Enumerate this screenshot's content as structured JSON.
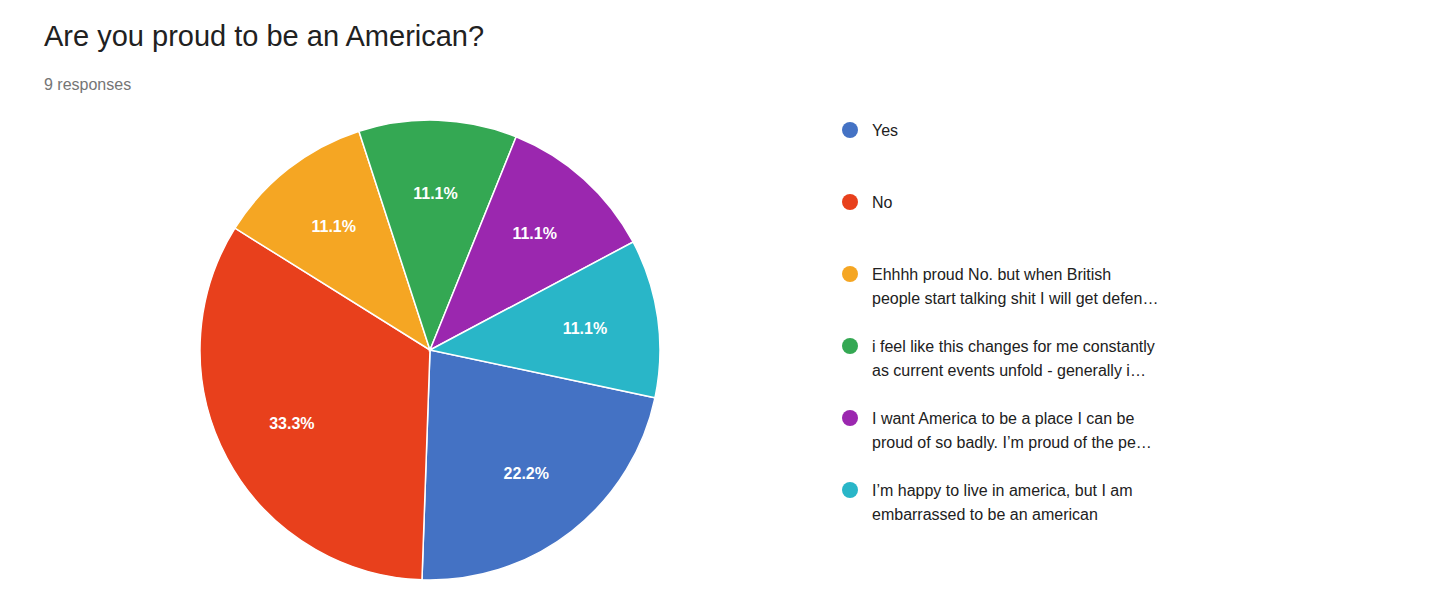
{
  "chart_data": {
    "type": "pie",
    "title": "Are you proud to be an American?",
    "subtitle": "9 responses",
    "categories": [
      "Yes",
      "No",
      "Ehhhh proud No. but when British\npeople start talking shit I will get defen…",
      "i feel like this changes for me constantly\nas current events unfold - generally i…",
      "I want America to be a place I can be\nproud of so badly. I’m proud of the pe…",
      "I’m happy to live in america, but I am\nembarrassed to be an american"
    ],
    "values": [
      22.2,
      33.3,
      11.1,
      11.1,
      11.1,
      11.1
    ],
    "value_labels": [
      "22.2%",
      "33.3%",
      "11.1%",
      "11.1%",
      "11.1%",
      "11.1%"
    ],
    "colors": [
      "#4472c4",
      "#e8401c",
      "#f5a623",
      "#34a853",
      "#9b27af",
      "#29b6c8"
    ],
    "data_labels": true,
    "legend": "right"
  }
}
